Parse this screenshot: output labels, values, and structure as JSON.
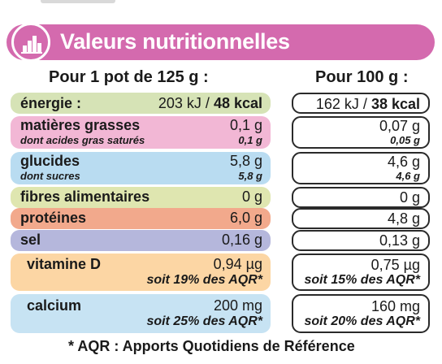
{
  "title": "Valeurs nutritionnelles",
  "columns": {
    "per_portion": "Pour 1 pot de 125 g :",
    "per_100g": "Pour 100 g :"
  },
  "colors": {
    "header": "#d46aae",
    "energie": "#d6e3b6",
    "matieres": "#f2b7d5",
    "glucides": "#b9dcf1",
    "fibres": "#dfe6b0",
    "proteines": "#f2a98c",
    "sel": "#b5b7dc",
    "vitamine": "#fcd6a4",
    "calcium": "#c7e3f3"
  },
  "rows": {
    "energie": {
      "label": "énergie :",
      "kj_125": "203 kJ /",
      "kcal_125": "48 kcal",
      "kj_100": "162 kJ /",
      "kcal_100": "38 kcal"
    },
    "matieres": {
      "label": "matières grasses",
      "value_125": "0,1 g",
      "value_100": "0,07 g",
      "sub_label": "dont acides gras saturés",
      "sub_125": "0,1 g",
      "sub_100": "0,05 g"
    },
    "glucides": {
      "label": "glucides",
      "value_125": "5,8 g",
      "value_100": "4,6 g",
      "sub_label": "dont sucres",
      "sub_125": "5,8 g",
      "sub_100": "4,6 g"
    },
    "fibres": {
      "label": "fibres alimentaires",
      "value_125": "0 g",
      "value_100": "0 g"
    },
    "proteines": {
      "label": "protéines",
      "value_125": "6,0 g",
      "value_100": "4,8 g"
    },
    "sel": {
      "label": "sel",
      "value_125": "0,16 g",
      "value_100": "0,13 g"
    },
    "vitamine": {
      "label": "vitamine D",
      "value_125": "0,94 µg",
      "value_100": "0,75 µg",
      "pct_125": "soit 19% des AQR*",
      "pct_100": "soit 15% des AQR*"
    },
    "calcium": {
      "label": "calcium",
      "value_125": "200 mg",
      "value_100": "160 mg",
      "pct_125": "soit 25% des AQR*",
      "pct_100": "soit 20% des AQR*"
    }
  },
  "footnote": "* AQR : Apports Quotidiens de Référence",
  "icons": {
    "header": "bar-chart-icon"
  }
}
